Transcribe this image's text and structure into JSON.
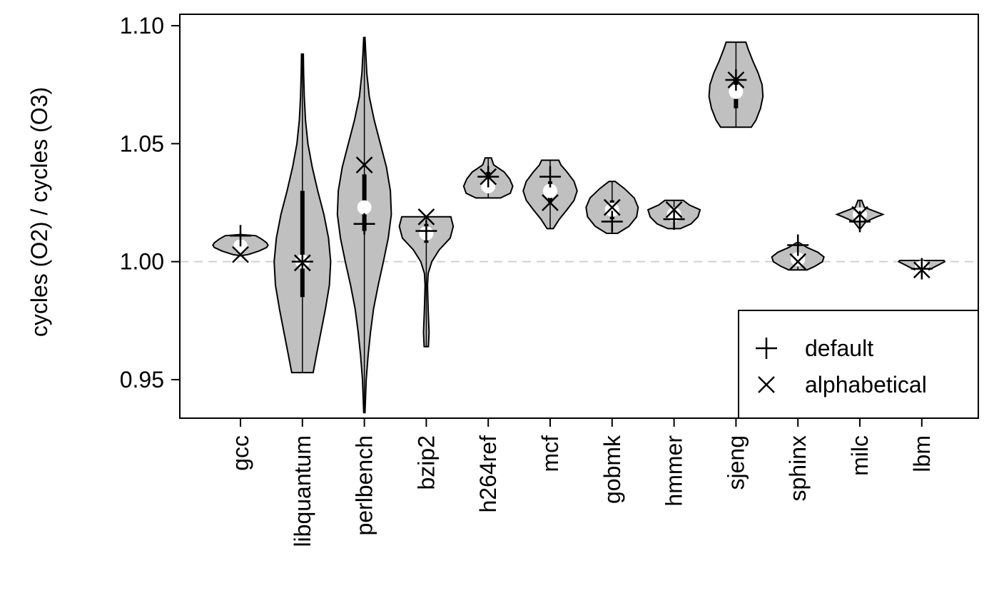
{
  "chart_data": {
    "type": "violin",
    "title": "",
    "xlabel": "",
    "ylabel": "cycles (O2) / cycles (O3)",
    "ylim": [
      0.93,
      1.1
    ],
    "yticks": [
      {
        "value": 0.95,
        "label": "0.95"
      },
      {
        "value": 1.0,
        "label": "1.00"
      },
      {
        "value": 1.05,
        "label": "1.05"
      },
      {
        "value": 1.1,
        "label": "1.10"
      }
    ],
    "reference_line": {
      "value": 1.0,
      "style": "dashed",
      "color": "#d0d0d0"
    },
    "violin_fill": "#c0c0c0",
    "legend": {
      "position": "bottom-right",
      "entries": [
        {
          "marker": "plus",
          "label": "default"
        },
        {
          "marker": "cross",
          "label": "alphabetical"
        }
      ]
    },
    "categories": [
      "gcc",
      "libquantum",
      "perlbench",
      "bzip2",
      "h264ref",
      "mcf",
      "gobmk",
      "hmmer",
      "sjeng",
      "sphinx",
      "milc",
      "lbm"
    ],
    "violins": [
      {
        "name": "gcc",
        "min": 1.0025,
        "max": 1.0115,
        "median": 1.0065,
        "q1": 1.0045,
        "q3": 1.0095,
        "profile": [
          [
            1.0025,
            0.0
          ],
          [
            1.003,
            0.25
          ],
          [
            1.0045,
            0.6
          ],
          [
            1.006,
            0.85
          ],
          [
            1.007,
            0.9
          ],
          [
            1.008,
            0.85
          ],
          [
            1.0095,
            0.7
          ],
          [
            1.011,
            0.5
          ],
          [
            1.0115,
            0.0
          ]
        ],
        "default": 1.011,
        "alphabetical": 1.003
      },
      {
        "name": "libquantum",
        "min": 0.953,
        "max": 1.088,
        "median": 1.0,
        "q1": 0.985,
        "q3": 1.03,
        "profile": [
          [
            0.953,
            0.35
          ],
          [
            0.96,
            0.45
          ],
          [
            0.97,
            0.6
          ],
          [
            0.98,
            0.75
          ],
          [
            0.99,
            0.88
          ],
          [
            1.0,
            0.92
          ],
          [
            1.01,
            0.85
          ],
          [
            1.02,
            0.7
          ],
          [
            1.03,
            0.5
          ],
          [
            1.04,
            0.32
          ],
          [
            1.05,
            0.18
          ],
          [
            1.06,
            0.1
          ],
          [
            1.07,
            0.06
          ],
          [
            1.08,
            0.04
          ],
          [
            1.088,
            0.03
          ]
        ],
        "default": 1.0,
        "alphabetical": 0.9995
      },
      {
        "name": "perlbench",
        "min": 0.936,
        "max": 1.095,
        "median": 1.023,
        "q1": 1.013,
        "q3": 1.037,
        "profile": [
          [
            0.936,
            0.02
          ],
          [
            0.95,
            0.06
          ],
          [
            0.96,
            0.12
          ],
          [
            0.97,
            0.2
          ],
          [
            0.98,
            0.3
          ],
          [
            0.99,
            0.45
          ],
          [
            1.0,
            0.62
          ],
          [
            1.01,
            0.78
          ],
          [
            1.02,
            0.88
          ],
          [
            1.03,
            0.85
          ],
          [
            1.04,
            0.72
          ],
          [
            1.05,
            0.52
          ],
          [
            1.06,
            0.32
          ],
          [
            1.07,
            0.16
          ],
          [
            1.08,
            0.08
          ],
          [
            1.09,
            0.04
          ],
          [
            1.095,
            0.02
          ]
        ],
        "default": 1.016,
        "alphabetical": 1.041
      },
      {
        "name": "bzip2",
        "min": 0.964,
        "max": 1.019,
        "median": 1.012,
        "q1": 1.008,
        "q3": 1.016,
        "profile": [
          [
            0.964,
            0.07
          ],
          [
            0.97,
            0.09
          ],
          [
            0.98,
            0.06
          ],
          [
            0.99,
            0.04
          ],
          [
            0.995,
            0.06
          ],
          [
            1.0,
            0.18
          ],
          [
            1.005,
            0.42
          ],
          [
            1.01,
            0.78
          ],
          [
            1.015,
            0.88
          ],
          [
            1.019,
            0.8
          ]
        ],
        "default": 1.013,
        "alphabetical": 1.019
      },
      {
        "name": "h264ref",
        "min": 1.027,
        "max": 1.044,
        "median": 1.032,
        "q1": 1.03,
        "q3": 1.038,
        "profile": [
          [
            1.027,
            0.4
          ],
          [
            1.029,
            0.72
          ],
          [
            1.032,
            0.8
          ],
          [
            1.035,
            0.7
          ],
          [
            1.038,
            0.52
          ],
          [
            1.041,
            0.18
          ],
          [
            1.044,
            0.1
          ]
        ],
        "default": 1.036,
        "alphabetical": 1.036
      },
      {
        "name": "mcf",
        "min": 1.014,
        "max": 1.043,
        "median": 1.03,
        "q1": 1.025,
        "q3": 1.034,
        "profile": [
          [
            1.014,
            0.1
          ],
          [
            1.018,
            0.3
          ],
          [
            1.022,
            0.55
          ],
          [
            1.026,
            0.78
          ],
          [
            1.03,
            0.88
          ],
          [
            1.034,
            0.78
          ],
          [
            1.038,
            0.55
          ],
          [
            1.041,
            0.35
          ],
          [
            1.043,
            0.28
          ]
        ],
        "default": 1.036,
        "alphabetical": 1.025
      },
      {
        "name": "gobmk",
        "min": 1.012,
        "max": 1.034,
        "median": 1.022,
        "q1": 1.018,
        "q3": 1.026,
        "profile": [
          [
            1.012,
            0.18
          ],
          [
            1.015,
            0.55
          ],
          [
            1.019,
            0.8
          ],
          [
            1.023,
            0.85
          ],
          [
            1.027,
            0.72
          ],
          [
            1.031,
            0.4
          ],
          [
            1.034,
            0.1
          ]
        ],
        "default": 1.017,
        "alphabetical": 1.023
      },
      {
        "name": "hmmer",
        "min": 1.014,
        "max": 1.026,
        "median": 1.02,
        "q1": 1.018,
        "q3": 1.023,
        "profile": [
          [
            1.014,
            0.2
          ],
          [
            1.016,
            0.55
          ],
          [
            1.019,
            0.78
          ],
          [
            1.022,
            0.85
          ],
          [
            1.024,
            0.5
          ],
          [
            1.026,
            0.3
          ]
        ],
        "default": 1.018,
        "alphabetical": 1.022
      },
      {
        "name": "sjeng",
        "min": 1.057,
        "max": 1.093,
        "median": 1.072,
        "q1": 1.065,
        "q3": 1.078,
        "profile": [
          [
            1.057,
            0.5
          ],
          [
            1.06,
            0.65
          ],
          [
            1.065,
            0.8
          ],
          [
            1.07,
            0.88
          ],
          [
            1.075,
            0.85
          ],
          [
            1.08,
            0.72
          ],
          [
            1.085,
            0.55
          ],
          [
            1.09,
            0.4
          ],
          [
            1.093,
            0.32
          ]
        ],
        "default": 1.077,
        "alphabetical": 1.077
      },
      {
        "name": "sphinx",
        "min": 0.9965,
        "max": 1.008,
        "median": 1.001,
        "q1": 0.999,
        "q3": 1.003,
        "profile": [
          [
            0.9965,
            0.3
          ],
          [
            0.998,
            0.55
          ],
          [
            1.0,
            0.8
          ],
          [
            1.002,
            0.85
          ],
          [
            1.004,
            0.65
          ],
          [
            1.006,
            0.3
          ],
          [
            1.008,
            0.05
          ]
        ],
        "default": 1.007,
        "alphabetical": 1.0
      },
      {
        "name": "milc",
        "min": 1.014,
        "max": 1.026,
        "median": 1.02,
        "q1": 1.019,
        "q3": 1.021,
        "profile": [
          [
            1.014,
            0.02
          ],
          [
            1.017,
            0.2
          ],
          [
            1.019,
            0.55
          ],
          [
            1.02,
            0.75
          ],
          [
            1.021,
            0.55
          ],
          [
            1.023,
            0.15
          ],
          [
            1.026,
            0.06
          ]
        ],
        "default": 1.017,
        "alphabetical": 1.02
      },
      {
        "name": "lbm",
        "min": 0.9955,
        "max": 1.0005,
        "median": 0.9975,
        "q1": 0.997,
        "q3": 0.999,
        "profile": [
          [
            0.9955,
            0.05
          ],
          [
            0.997,
            0.3
          ],
          [
            0.998,
            0.45
          ],
          [
            0.999,
            0.6
          ],
          [
            1.0,
            0.75
          ],
          [
            1.0005,
            0.72
          ]
        ],
        "default": 0.997,
        "alphabetical": 0.9965
      }
    ]
  }
}
